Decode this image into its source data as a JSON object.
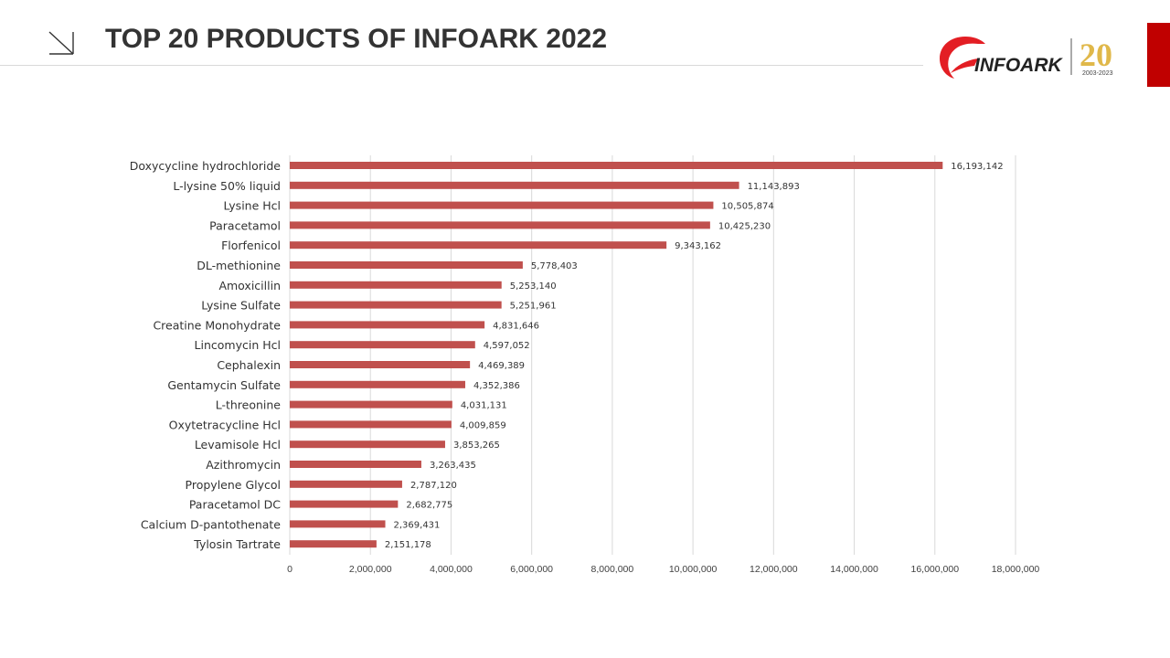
{
  "header": {
    "title": "TOP 20 PRODUCTS OF INFOARK 2022",
    "logo_text": "INFOARK",
    "anniversary_number": "20",
    "anniversary_years": "2003-2023",
    "accent_color": "#c00000"
  },
  "chart_data": {
    "type": "bar",
    "orientation": "horizontal",
    "title": "",
    "xlabel": "",
    "ylabel": "",
    "xlim": [
      0,
      18000000
    ],
    "x_ticks": [
      0,
      2000000,
      4000000,
      6000000,
      8000000,
      10000000,
      12000000,
      14000000,
      16000000,
      18000000
    ],
    "x_tick_labels": [
      "0",
      "2,000,000",
      "4,000,000",
      "6,000,000",
      "8,000,000",
      "10,000,000",
      "12,000,000",
      "14,000,000",
      "16,000,000",
      "18,000,000"
    ],
    "grid": true,
    "legend": "none",
    "bar_color": "#c0504d",
    "categories": [
      "Doxycycline hydrochloride",
      "L-lysine 50% liquid",
      "Lysine Hcl",
      "Paracetamol",
      "Florfenicol",
      "DL-methionine",
      "Amoxicillin",
      "Lysine Sulfate",
      "Creatine Monohydrate",
      "Lincomycin Hcl",
      "Cephalexin",
      "Gentamycin Sulfate",
      "L-threonine",
      "Oxytetracycline Hcl",
      "Levamisole Hcl",
      "Azithromycin",
      "Propylene Glycol",
      "Paracetamol DC",
      "Calcium D-pantothenate",
      "Tylosin Tartrate"
    ],
    "values": [
      16193142,
      11143893,
      10505874,
      10425230,
      9343162,
      5778403,
      5253140,
      5251961,
      4831646,
      4597052,
      4469389,
      4352386,
      4031131,
      4009859,
      3853265,
      3263435,
      2787120,
      2682775,
      2369431,
      2151178
    ],
    "value_labels": [
      "16,193,142",
      "11,143,893",
      "10,505,874",
      "10,425,230",
      "9,343,162",
      "5,778,403",
      "5,253,140",
      "5,251,961",
      "4,831,646",
      "4,597,052",
      "4,469,389",
      "4,352,386",
      "4,031,131",
      "4,009,859",
      "3,853,265",
      "3,263,435",
      "2,787,120",
      "2,682,775",
      "2,369,431",
      "2,151,178"
    ]
  }
}
